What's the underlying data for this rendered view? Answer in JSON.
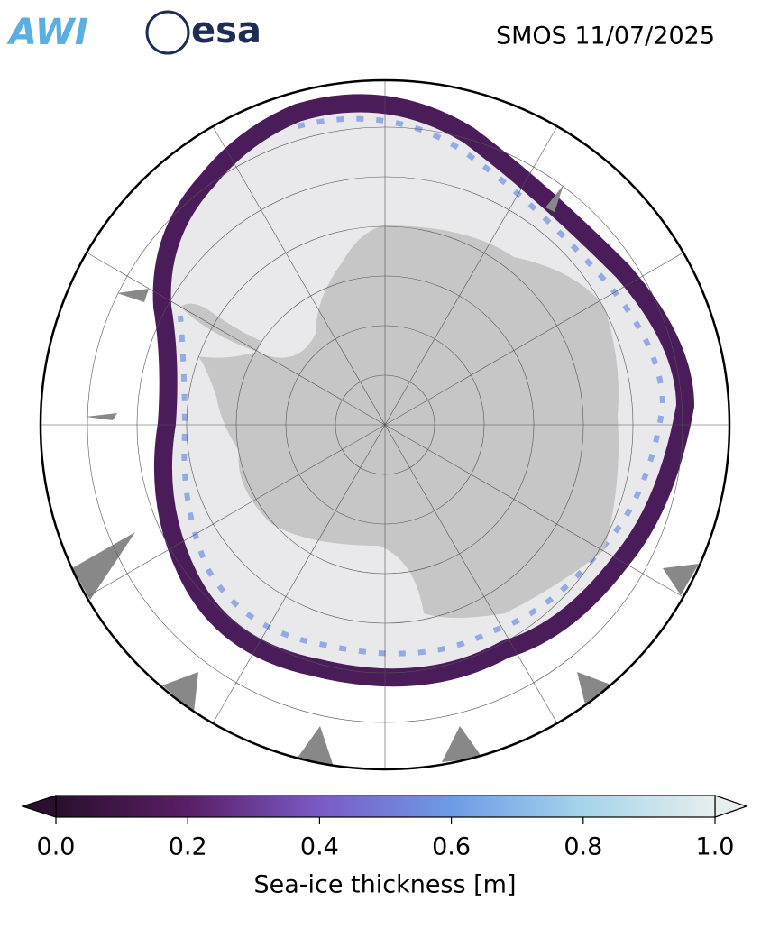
{
  "header": {
    "logos": [
      "AWI",
      "esa"
    ],
    "title": "SMOS 11/07/2025"
  },
  "colorbar": {
    "label": "Sea-ice thickness [m]",
    "lim": [
      0,
      1
    ],
    "ticks": [
      {
        "value": 0,
        "label": "0.0"
      },
      {
        "value": 0.2,
        "label": "0.2"
      },
      {
        "value": 0.4,
        "label": "0.4"
      },
      {
        "value": 0.6,
        "label": "0.6"
      },
      {
        "value": 0.8,
        "label": "0.8"
      },
      {
        "value": 1,
        "label": "1.0"
      }
    ]
  }
}
